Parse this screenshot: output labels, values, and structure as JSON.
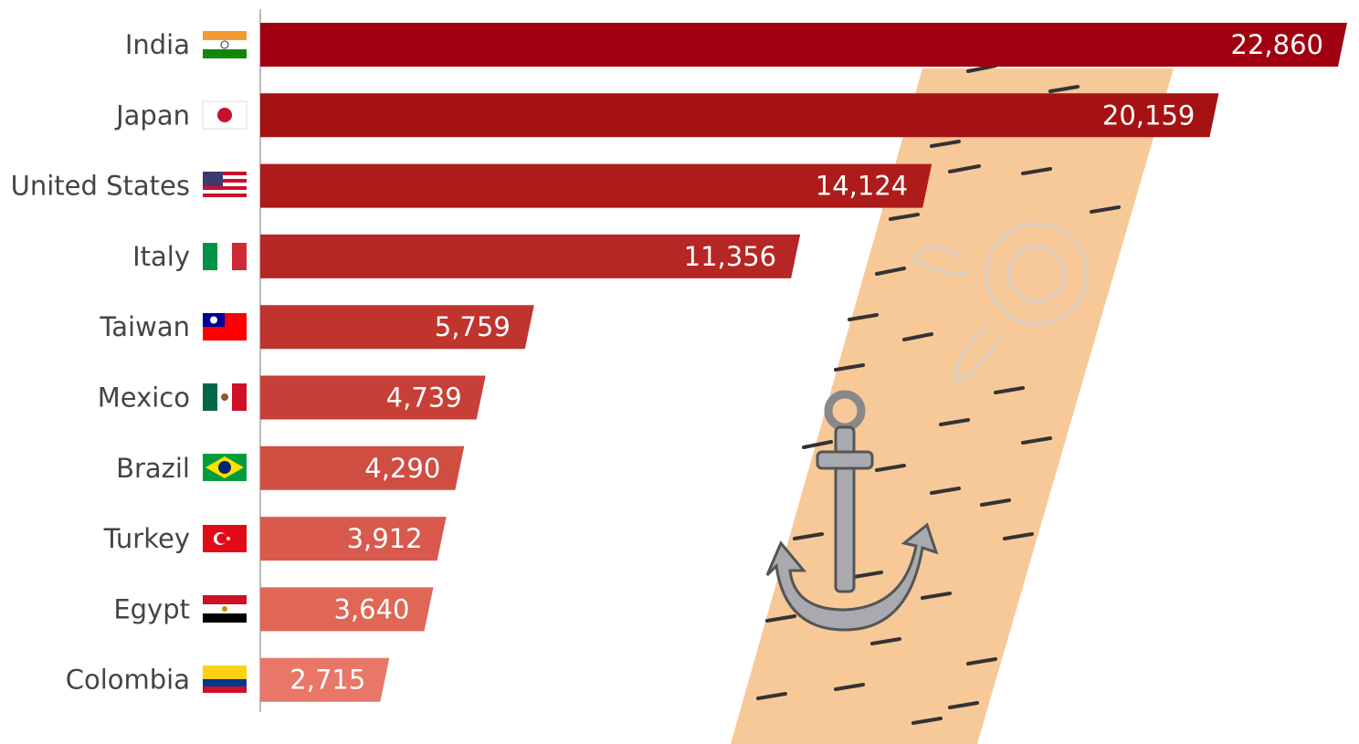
{
  "chart_data": {
    "type": "bar",
    "orientation": "horizontal",
    "categories": [
      "India",
      "Japan",
      "United States",
      "Italy",
      "Taiwan",
      "Mexico",
      "Brazil",
      "Turkey",
      "Egypt",
      "Colombia"
    ],
    "values": [
      22860,
      20159,
      14124,
      11356,
      5759,
      4739,
      4290,
      3912,
      3640,
      2715
    ],
    "value_labels": [
      "22,860",
      "20,159",
      "14,124",
      "11,356",
      "5,759",
      "4,739",
      "4,290",
      "3,912",
      "3,640",
      "2,715"
    ],
    "colors": [
      "#a0000f",
      "#a61214",
      "#ad1c1b",
      "#b52624",
      "#c0342e",
      "#c83f37",
      "#d04d42",
      "#d9594d",
      "#e06656",
      "#e87767"
    ]
  }
}
